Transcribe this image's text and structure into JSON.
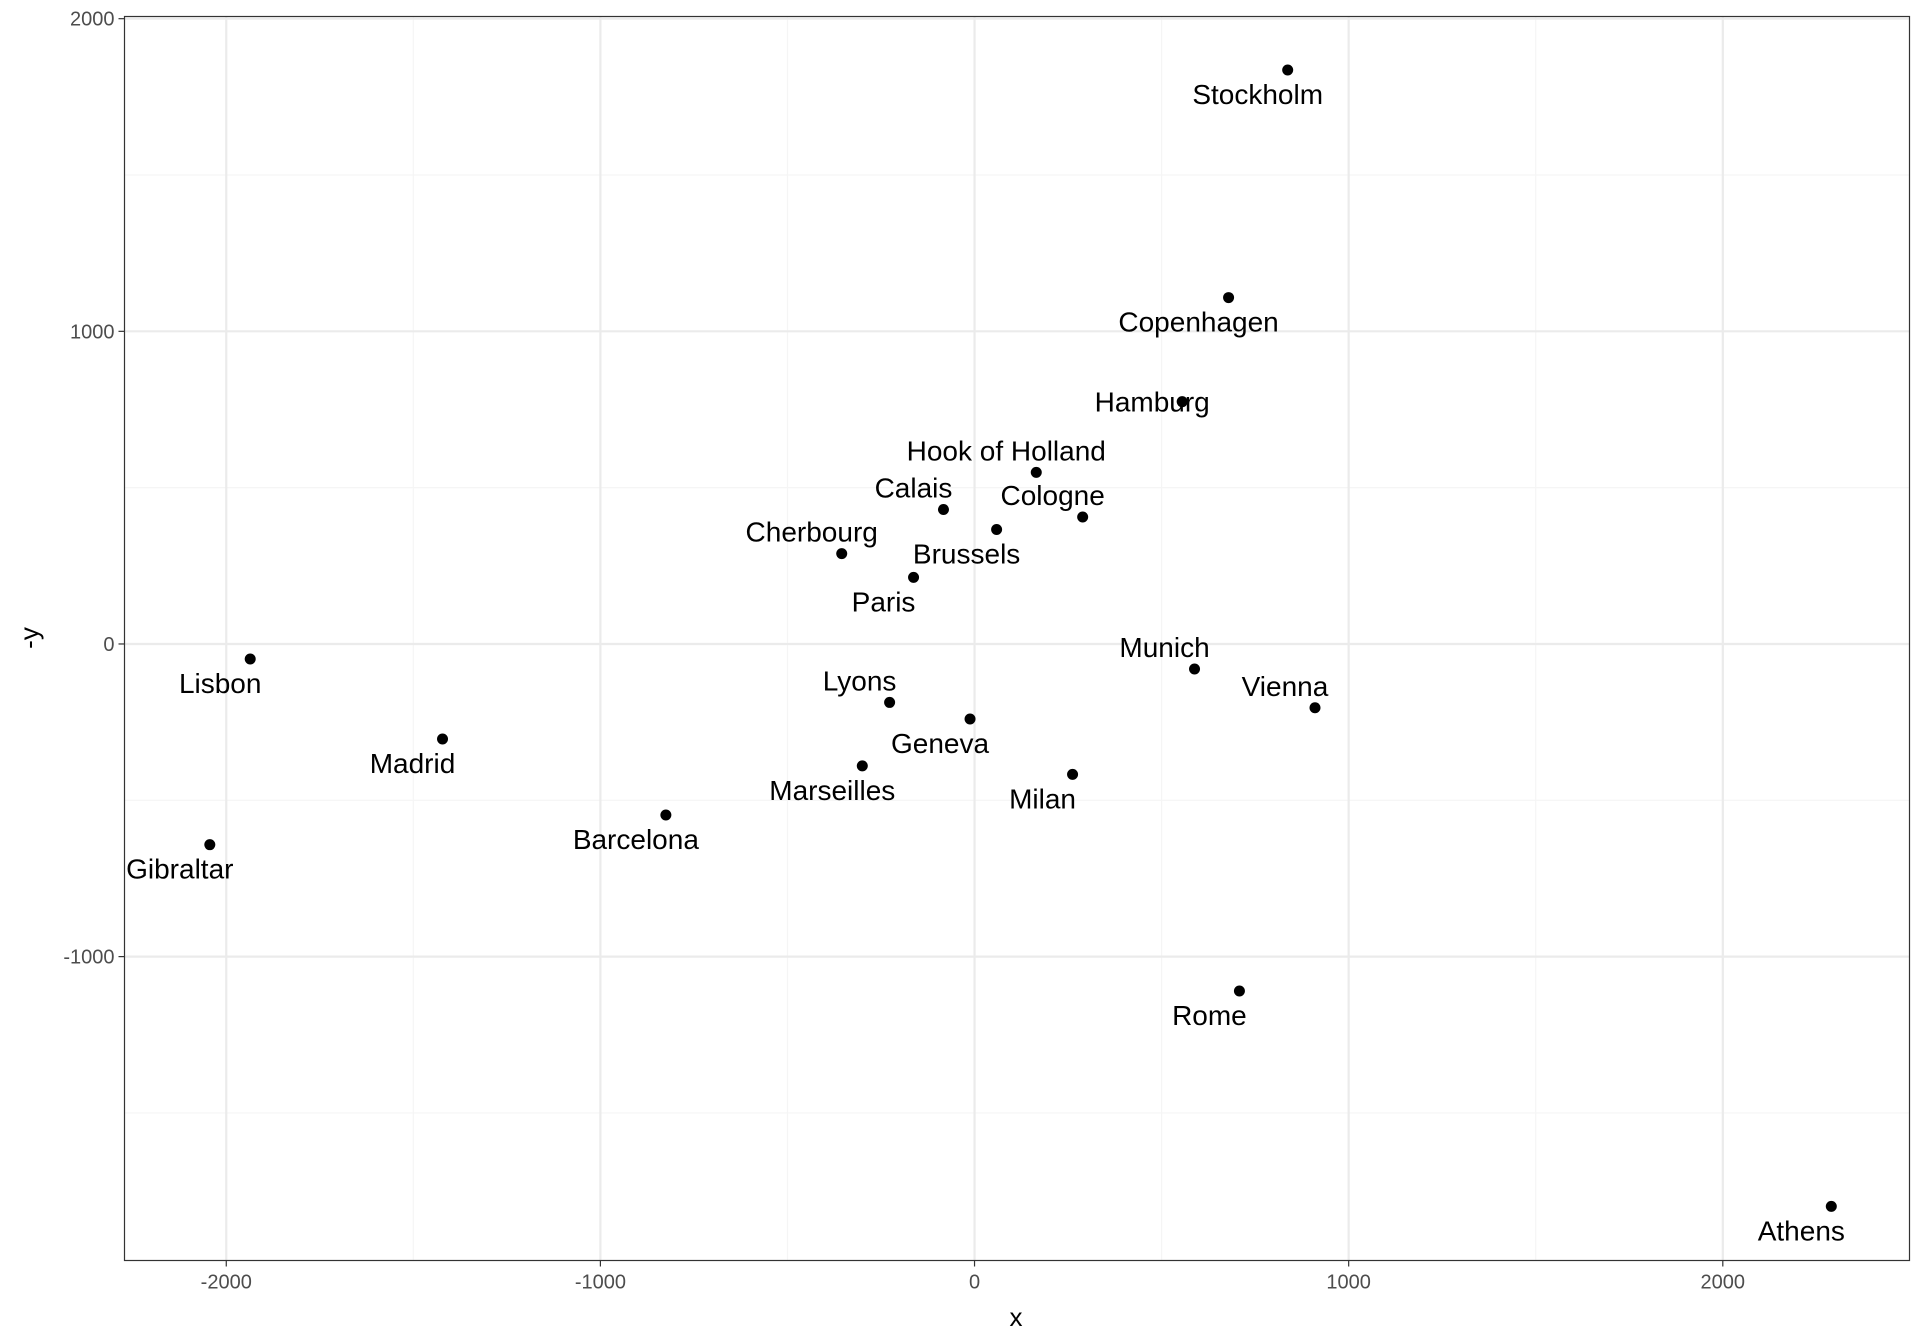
{
  "chart_data": {
    "type": "scatter",
    "title": "",
    "xlabel": "x",
    "ylabel": "-y",
    "xlim": [
      -2272,
      2499
    ],
    "ylim": [
      -1972,
      2007
    ],
    "x_ticks": [
      -2000,
      -1000,
      0,
      1000,
      2000
    ],
    "x_tick_labels": [
      "-2000",
      "-1000",
      "0",
      "1000",
      "2000"
    ],
    "y_ticks": [
      -1000,
      0,
      1000,
      2000
    ],
    "y_tick_labels": [
      "-1000",
      "0",
      "1000",
      "2000"
    ],
    "grid": true,
    "legend": "none",
    "point_color": "#000000",
    "grid_major_color": "#ebebeb",
    "grid_minor_color": "#f5f5f5",
    "points": [
      {
        "label": "Athens",
        "x": 2290,
        "y": -1799,
        "pos": "below"
      },
      {
        "label": "Barcelona",
        "x": -825,
        "y": -547,
        "pos": "below"
      },
      {
        "label": "Brussels",
        "x": 59,
        "y": 366,
        "pos": "below"
      },
      {
        "label": "Calais",
        "x": -83,
        "y": 430,
        "pos": "above"
      },
      {
        "label": "Cherbourg",
        "x": -355,
        "y": 289,
        "pos": "above"
      },
      {
        "label": "Cologne",
        "x": 289,
        "y": 406,
        "pos": "above"
      },
      {
        "label": "Copenhagen",
        "x": 679,
        "y": 1108,
        "pos": "below"
      },
      {
        "label": "Geneva",
        "x": -12,
        "y": -240,
        "pos": "below"
      },
      {
        "label": "Gibraltar",
        "x": -2044,
        "y": -642,
        "pos": "below"
      },
      {
        "label": "Hamburg",
        "x": 555,
        "y": 775,
        "pos": "center"
      },
      {
        "label": "Hook of Holland",
        "x": 165,
        "y": 549,
        "pos": "above"
      },
      {
        "label": "Lisbon",
        "x": -1936,
        "y": -48,
        "pos": "below"
      },
      {
        "label": "Lyons",
        "x": -227,
        "y": -187,
        "pos": "above"
      },
      {
        "label": "Madrid",
        "x": -1422,
        "y": -304,
        "pos": "below"
      },
      {
        "label": "Marseilles",
        "x": -300,
        "y": -390,
        "pos": "below"
      },
      {
        "label": "Milan",
        "x": 262,
        "y": -417,
        "pos": "below"
      },
      {
        "label": "Munich",
        "x": 588,
        "y": -80,
        "pos": "above"
      },
      {
        "label": "Paris",
        "x": -163,
        "y": 213,
        "pos": "below"
      },
      {
        "label": "Rome",
        "x": 708,
        "y": -1110,
        "pos": "below"
      },
      {
        "label": "Stockholm",
        "x": 837,
        "y": 1836,
        "pos": "below"
      },
      {
        "label": "Vienna",
        "x": 910,
        "y": -204,
        "pos": "above"
      }
    ]
  }
}
